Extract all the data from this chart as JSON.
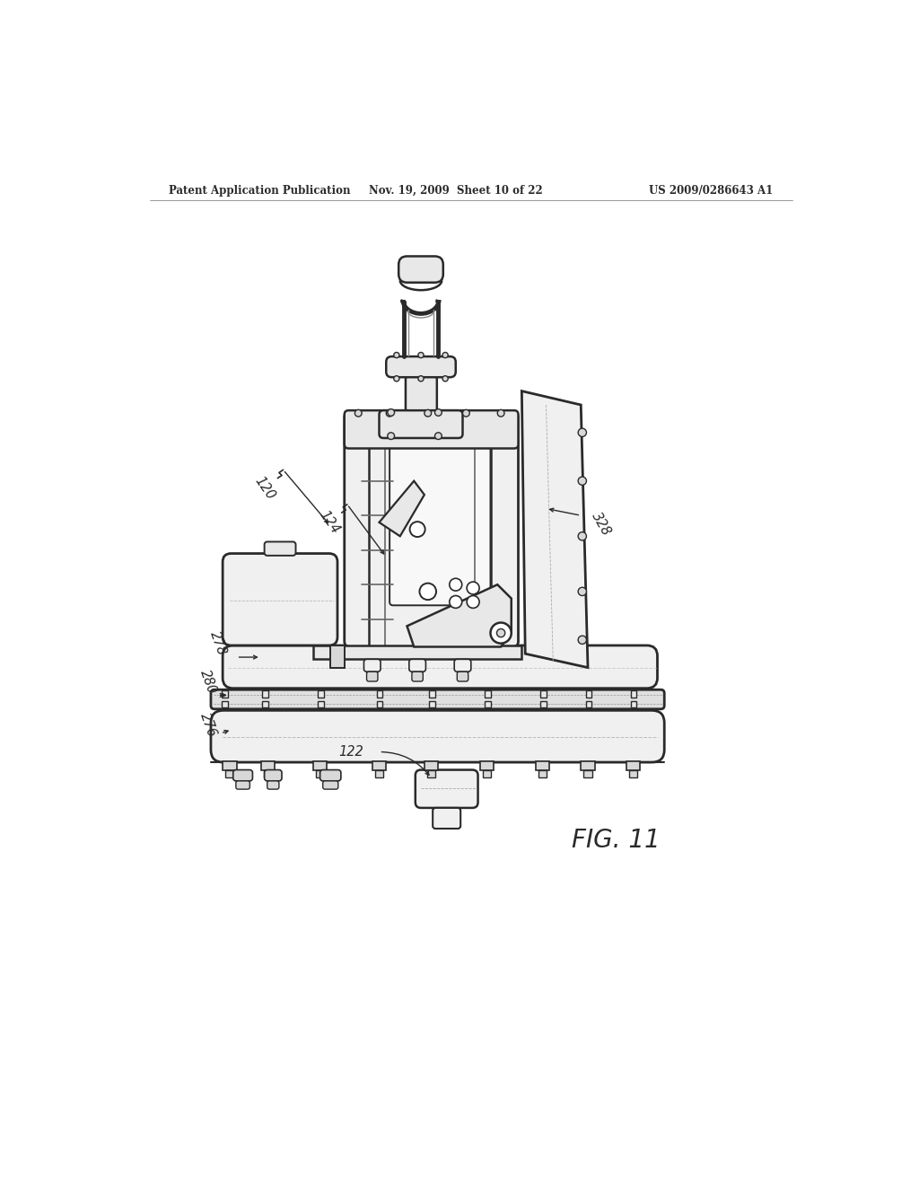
{
  "background": "#ffffff",
  "line_color": "#2a2a2a",
  "header_left": "Patent Application Publication",
  "header_center": "Nov. 19, 2009  Sheet 10 of 22",
  "header_right": "US 2009/0286643 A1",
  "fig_label": "FIG. 11",
  "labels": [
    "120",
    "124",
    "278",
    "280",
    "276",
    "122",
    "328"
  ],
  "label_size": 10.5,
  "header_size": 8.5,
  "fig_label_size": 20
}
